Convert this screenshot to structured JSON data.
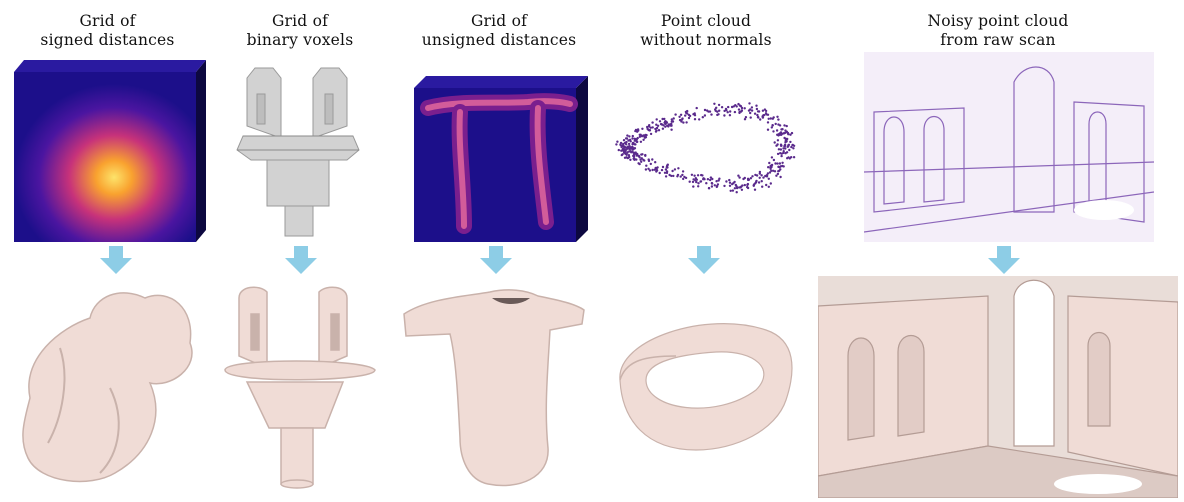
{
  "panels": [
    {
      "id": "signed",
      "title_line1": "Grid",
      "title_line1b": "of",
      "title_line2": "signed distances"
    },
    {
      "id": "voxels",
      "title_line1": "Grid",
      "title_line1b": "of",
      "title_line2": "binary voxels"
    },
    {
      "id": "unsigned",
      "title_line1": "Grid",
      "title_line1b": "of",
      "title_line2": "unsigned distances"
    },
    {
      "id": "pointcloud",
      "title_line1": "Point",
      "title_line1b": "cloud",
      "title_line2": "without normals"
    },
    {
      "id": "rawscan",
      "title_line1": "Noisy point cloud",
      "title_line1b": "",
      "title_line2": "from raw scan"
    }
  ],
  "colors": {
    "arrow": "#8dcde6",
    "surface": "#f0dcd6",
    "surface_shade": "#c9b2ab",
    "heat_dark": "#1c0f8a",
    "heat_mid": "#b0287a",
    "heat_hot": "#f9b830",
    "voxel_gray": "#d2d2d2",
    "point_purple": "#5a2a8c"
  },
  "icons": [
    "arrow-down-icon"
  ]
}
